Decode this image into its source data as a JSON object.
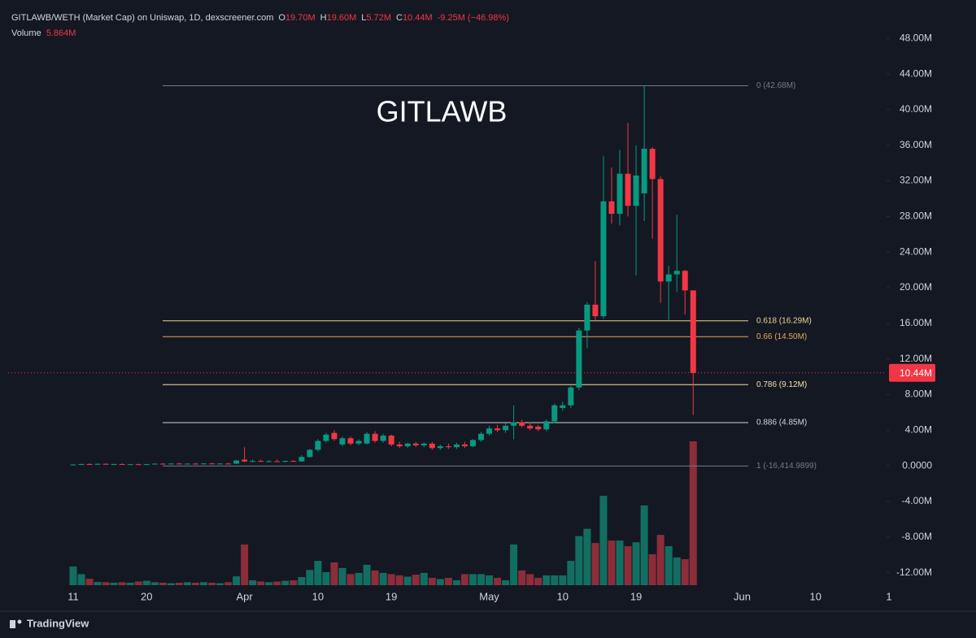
{
  "chart_data": {
    "type": "candlestick",
    "header": {
      "symbol": "GITLAWB/WETH (Market Cap) on Uniswap, 1D, dexscreener.com",
      "ohlc": [
        {
          "key": "O",
          "value": "19.70M"
        },
        {
          "key": "H",
          "value": "19.60M"
        },
        {
          "key": "L",
          "value": "5.72M"
        },
        {
          "key": "C",
          "value": "10.44M"
        }
      ],
      "change": "-9.25M (−46.98%)",
      "volume_name": "Volume",
      "volume_value": "5.864M"
    },
    "watermark": "GITLAWB",
    "brand": "TradingView",
    "up_color": "#089981",
    "down_color": "#f23645",
    "volume_up_color": "#136e62",
    "volume_down_color": "#8c2d3a",
    "categories": [
      "11",
      null,
      null,
      null,
      null,
      null,
      null,
      null,
      null,
      "20",
      null,
      null,
      null,
      null,
      null,
      null,
      null,
      null,
      null,
      null,
      null,
      "Apr",
      null,
      null,
      null,
      null,
      null,
      null,
      null,
      null,
      "10",
      null,
      null,
      null,
      null,
      null,
      null,
      null,
      null,
      "19",
      null,
      null,
      null,
      null,
      null,
      null,
      null,
      null,
      null,
      null,
      null,
      "May",
      null,
      null,
      null,
      null,
      null,
      null,
      null,
      null,
      "10",
      null,
      null,
      null,
      null,
      null,
      null,
      null,
      null,
      "19",
      null,
      null,
      null,
      null,
      null,
      null,
      null,
      null,
      null,
      null,
      null,
      null,
      "Jun",
      null,
      null,
      null,
      null,
      null,
      null,
      null,
      null,
      "10",
      null,
      null,
      null,
      null,
      null,
      null,
      null,
      null,
      "1"
    ],
    "open": [
      0.1,
      0.15,
      0.2,
      0.18,
      0.22,
      0.17,
      0.2,
      0.15,
      0.18,
      0.14,
      0.19,
      0.24,
      0.2,
      0.26,
      0.22,
      0.25,
      0.21,
      0.27,
      0.23,
      0.26,
      0.25,
      0.7,
      0.5,
      0.55,
      0.5,
      0.52,
      0.48,
      0.55,
      0.5,
      1.0,
      1.8,
      2.8,
      3.7,
      2.4,
      3.1,
      2.5,
      2.5,
      3.6,
      2.8,
      3.4,
      2.4,
      2.2,
      2.5,
      2.3,
      2.5,
      2.0,
      2.2,
      2.1,
      2.4,
      2.2,
      2.9,
      3.6,
      4.2,
      4.0,
      4.5,
      4.9,
      4.5,
      4.4,
      4.1,
      5.0,
      6.5,
      6.8,
      8.8,
      15.2,
      18.1,
      16.8,
      29.7,
      28.3,
      32.8,
      29.2,
      30.6,
      35.6,
      32.2,
      20.7,
      21.5,
      21.9,
      19.7,
      null,
      null,
      null,
      null,
      null,
      null,
      null,
      null,
      null,
      null,
      null,
      null,
      null,
      null,
      null,
      null,
      null,
      null,
      null,
      null,
      null,
      null,
      null,
      null
    ],
    "high": [
      0.2,
      0.25,
      0.3,
      0.28,
      0.3,
      0.25,
      0.28,
      0.22,
      0.25,
      0.22,
      0.3,
      0.32,
      0.28,
      0.35,
      0.3,
      0.32,
      0.3,
      0.35,
      0.3,
      0.33,
      0.65,
      2.1,
      0.7,
      0.7,
      0.65,
      0.7,
      0.6,
      0.65,
      1.2,
      1.9,
      3.0,
      3.7,
      4.0,
      3.3,
      3.3,
      3.0,
      3.8,
      3.9,
      3.6,
      3.5,
      2.7,
      2.6,
      2.7,
      2.6,
      2.7,
      2.4,
      2.5,
      2.6,
      2.7,
      3.0,
      3.8,
      4.5,
      4.6,
      4.8,
      6.8,
      5.2,
      4.9,
      4.6,
      5.2,
      7.0,
      7.2,
      9.0,
      15.5,
      18.4,
      23.0,
      34.8,
      33.5,
      35.5,
      38.5,
      36.0,
      42.68,
      35.8,
      32.5,
      22.5,
      28.2,
      22.0,
      19.6,
      null,
      null,
      null,
      null,
      null,
      null,
      null,
      null,
      null,
      null,
      null,
      null,
      null,
      null,
      null,
      null,
      null,
      null,
      null,
      null,
      null,
      null,
      null,
      null
    ],
    "low": [
      0.05,
      0.1,
      0.15,
      0.12,
      0.15,
      0.1,
      0.12,
      0.08,
      0.12,
      0.08,
      0.15,
      0.18,
      0.15,
      0.2,
      0.16,
      0.18,
      0.15,
      0.2,
      0.18,
      0.2,
      0.2,
      0.4,
      0.4,
      0.45,
      0.4,
      0.45,
      0.4,
      0.45,
      0.45,
      0.9,
      1.6,
      2.6,
      2.8,
      2.2,
      2.3,
      2.3,
      2.4,
      2.6,
      2.6,
      2.2,
      2.0,
      2.0,
      2.1,
      2.1,
      1.8,
      1.8,
      1.9,
      1.9,
      2.0,
      2.1,
      2.7,
      3.4,
      3.8,
      3.7,
      3.0,
      4.3,
      4.0,
      3.9,
      3.9,
      4.8,
      6.2,
      6.5,
      8.5,
      13.2,
      16.3,
      16.5,
      27.2,
      27.0,
      28.0,
      21.4,
      27.5,
      25.5,
      18.3,
      16.3,
      19.5,
      17.0,
      5.72,
      null,
      null,
      null,
      null,
      null,
      null,
      null,
      null,
      null,
      null,
      null,
      null,
      null,
      null,
      null,
      null,
      null,
      null,
      null,
      null,
      null,
      null,
      null,
      null
    ],
    "close": [
      0.15,
      0.2,
      0.18,
      0.22,
      0.17,
      0.2,
      0.15,
      0.18,
      0.14,
      0.19,
      0.24,
      0.2,
      0.26,
      0.22,
      0.25,
      0.21,
      0.27,
      0.23,
      0.26,
      0.22,
      0.6,
      0.5,
      0.55,
      0.5,
      0.52,
      0.48,
      0.55,
      0.5,
      1.0,
      1.8,
      2.8,
      3.5,
      3.0,
      3.1,
      2.5,
      2.8,
      3.6,
      2.8,
      3.4,
      2.4,
      2.2,
      2.5,
      2.3,
      2.5,
      2.0,
      2.2,
      2.1,
      2.4,
      2.2,
      2.9,
      3.6,
      4.2,
      4.0,
      4.5,
      4.9,
      4.5,
      4.2,
      4.1,
      5.0,
      6.8,
      6.8,
      8.8,
      15.2,
      18.1,
      16.8,
      29.7,
      28.3,
      32.8,
      29.2,
      32.6,
      35.6,
      32.2,
      20.7,
      21.5,
      21.9,
      19.7,
      10.44,
      null,
      null,
      null,
      null,
      null,
      null,
      null,
      null,
      null,
      null,
      null,
      null,
      null,
      null,
      null,
      null,
      null,
      null,
      null,
      null,
      null,
      null,
      null,
      null
    ],
    "volume": [
      0.76,
      0.45,
      0.26,
      0.13,
      0.12,
      0.1,
      0.12,
      0.1,
      0.15,
      0.18,
      0.12,
      0.1,
      0.08,
      0.1,
      0.12,
      0.1,
      0.12,
      0.1,
      0.08,
      0.12,
      0.36,
      1.66,
      0.2,
      0.15,
      0.12,
      0.15,
      0.18,
      0.2,
      0.33,
      0.62,
      0.99,
      0.53,
      0.93,
      0.7,
      0.45,
      0.5,
      0.83,
      0.6,
      0.5,
      0.45,
      0.4,
      0.35,
      0.43,
      0.5,
      0.3,
      0.25,
      0.3,
      0.2,
      0.45,
      0.45,
      0.45,
      0.4,
      0.3,
      0.2,
      1.66,
      0.6,
      0.45,
      0.3,
      0.4,
      0.4,
      0.4,
      0.99,
      2.0,
      2.3,
      1.72,
      3.64,
      1.82,
      1.82,
      1.59,
      1.75,
      3.25,
      1.26,
      2.05,
      1.59,
      1.13,
      1.06,
      5.864,
      null,
      null,
      null,
      null,
      null,
      null,
      null,
      null,
      null,
      null,
      null,
      null,
      null,
      null,
      null,
      null,
      null,
      null,
      null,
      null,
      null,
      null,
      null,
      null
    ],
    "ylim": [
      -13.4,
      51.4
    ],
    "yticks": [
      {
        "value": 48,
        "label": "48.00M"
      },
      {
        "value": 44,
        "label": "44.00M"
      },
      {
        "value": 40,
        "label": "40.00M"
      },
      {
        "value": 36,
        "label": "36.00M"
      },
      {
        "value": 32,
        "label": "32.00M"
      },
      {
        "value": 28,
        "label": "28.00M"
      },
      {
        "value": 24,
        "label": "24.00M"
      },
      {
        "value": 20,
        "label": "20.00M"
      },
      {
        "value": 16,
        "label": "16.00M"
      },
      {
        "value": 12,
        "label": "12.00M"
      },
      {
        "value": 8,
        "label": "8.00M"
      },
      {
        "value": 4,
        "label": "4.00M"
      },
      {
        "value": 0,
        "label": "0.0000"
      },
      {
        "value": -4,
        "label": "-4.00M"
      },
      {
        "value": -8,
        "label": "-8.00M"
      },
      {
        "value": -12,
        "label": "-12.00M"
      }
    ],
    "last_price": {
      "value": 10.44,
      "label": "10.44M"
    },
    "fib_levels": [
      {
        "value": 42.68,
        "label": "0 (42.68M)",
        "color": "#787b86"
      },
      {
        "value": 16.29,
        "label": "0.618 (16.29M)",
        "color": "#e9d68e"
      },
      {
        "value": 14.5,
        "label": "0.66 (14.50M)",
        "color": "#e3a75c"
      },
      {
        "value": 9.12,
        "label": "0.786 (9.12M)",
        "color": "#f0e2a6"
      },
      {
        "value": 4.85,
        "label": "0.886 (4.85M)",
        "color": "#d1d4dc"
      },
      {
        "value": -0.0164149899,
        "label": "1 (-16,414.9899)",
        "color": "#787b86"
      }
    ]
  }
}
